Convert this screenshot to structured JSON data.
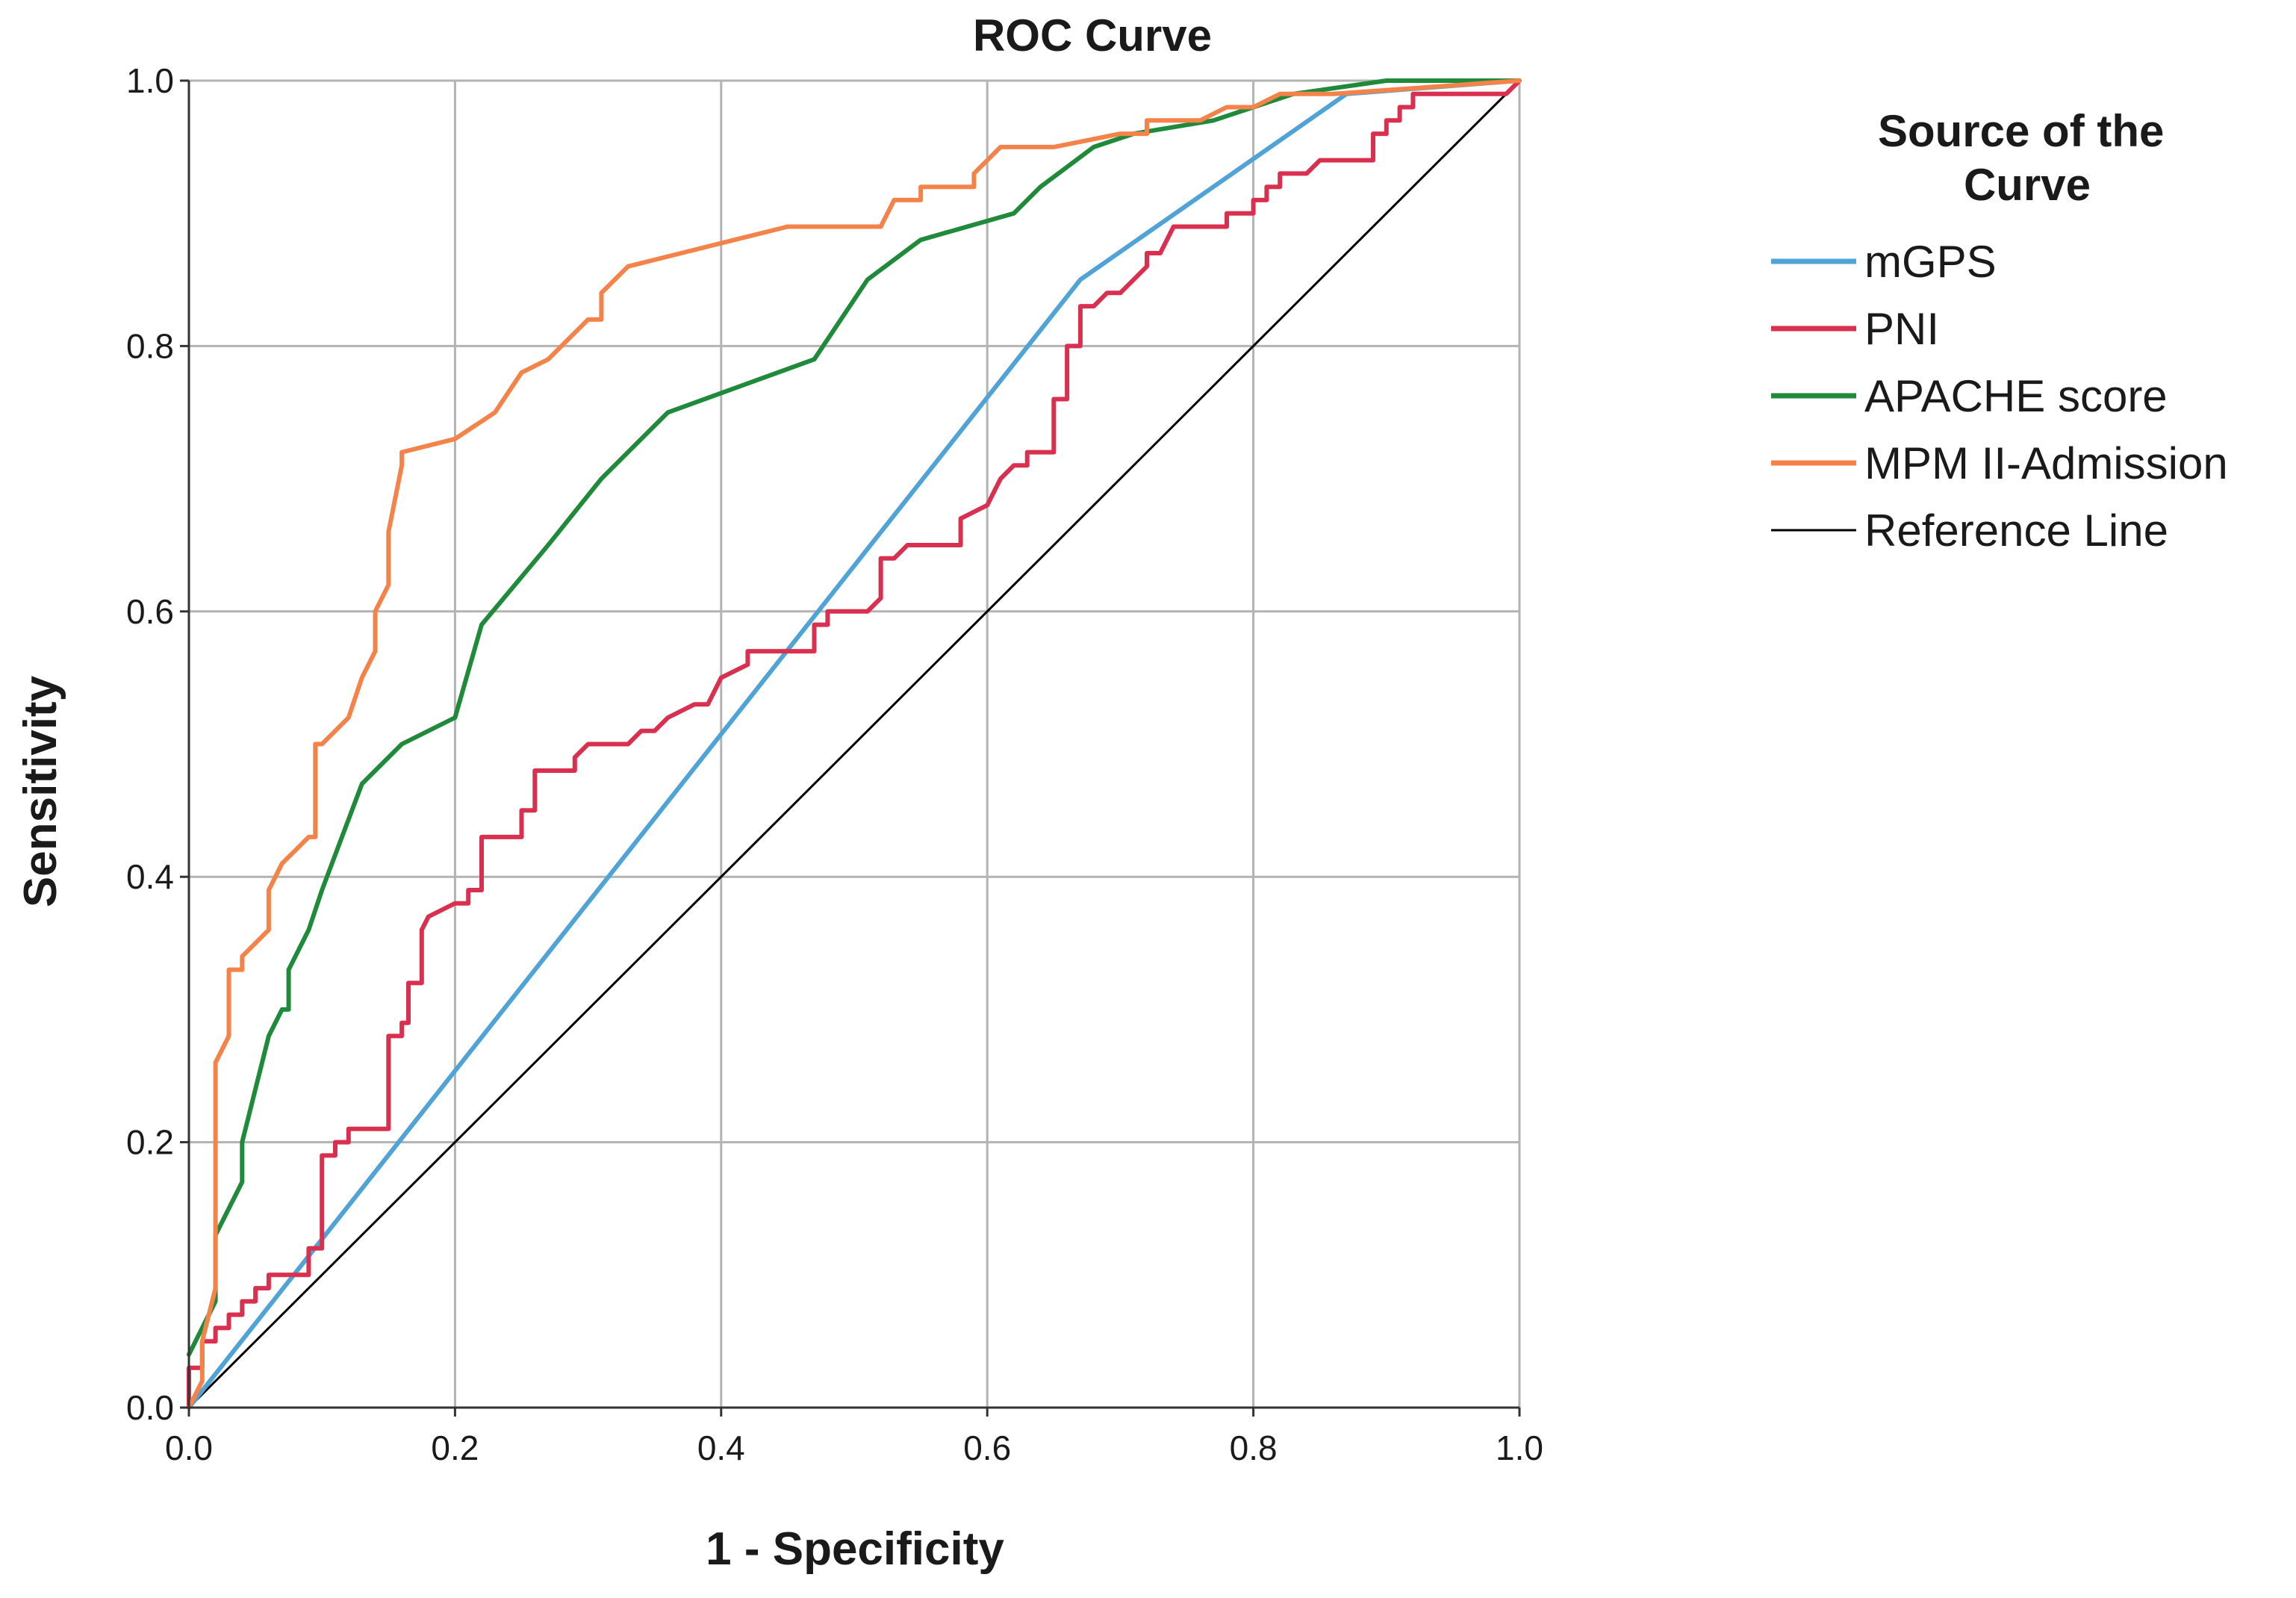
{
  "chart_data": {
    "type": "line",
    "title": "ROC Curve",
    "xlabel": "1 - Specificity",
    "ylabel": "Sensitivity",
    "xlim": [
      0,
      1
    ],
    "ylim": [
      0,
      1
    ],
    "x_ticks": [
      "0.0",
      "0.2",
      "0.4",
      "0.6",
      "0.8",
      "1.0"
    ],
    "y_ticks": [
      "0.0",
      "0.2",
      "0.4",
      "0.6",
      "0.8",
      "1.0"
    ],
    "grid": true,
    "legend": {
      "title": "Source of the Curve",
      "placement": "right"
    },
    "series": [
      {
        "name": "mGPS",
        "color": "#4fa3d6",
        "points": [
          [
            0,
            0
          ],
          [
            0.67,
            0.85
          ],
          [
            0.87,
            0.99
          ],
          [
            1.0,
            1.0
          ]
        ]
      },
      {
        "name": "PNI",
        "color": "#d9304f",
        "points": [
          [
            0,
            0
          ],
          [
            0,
            0.03
          ],
          [
            0.01,
            0.03
          ],
          [
            0.01,
            0.05
          ],
          [
            0.02,
            0.05
          ],
          [
            0.02,
            0.06
          ],
          [
            0.03,
            0.06
          ],
          [
            0.03,
            0.07
          ],
          [
            0.04,
            0.07
          ],
          [
            0.04,
            0.08
          ],
          [
            0.05,
            0.08
          ],
          [
            0.05,
            0.09
          ],
          [
            0.06,
            0.09
          ],
          [
            0.06,
            0.1
          ],
          [
            0.09,
            0.1
          ],
          [
            0.09,
            0.12
          ],
          [
            0.1,
            0.12
          ],
          [
            0.1,
            0.19
          ],
          [
            0.11,
            0.19
          ],
          [
            0.11,
            0.2
          ],
          [
            0.12,
            0.2
          ],
          [
            0.12,
            0.21
          ],
          [
            0.15,
            0.21
          ],
          [
            0.15,
            0.28
          ],
          [
            0.16,
            0.28
          ],
          [
            0.16,
            0.29
          ],
          [
            0.165,
            0.29
          ],
          [
            0.165,
            0.32
          ],
          [
            0.175,
            0.32
          ],
          [
            0.175,
            0.36
          ],
          [
            0.18,
            0.37
          ],
          [
            0.2,
            0.38
          ],
          [
            0.21,
            0.38
          ],
          [
            0.21,
            0.39
          ],
          [
            0.22,
            0.39
          ],
          [
            0.22,
            0.43
          ],
          [
            0.25,
            0.43
          ],
          [
            0.25,
            0.45
          ],
          [
            0.26,
            0.45
          ],
          [
            0.26,
            0.48
          ],
          [
            0.29,
            0.48
          ],
          [
            0.29,
            0.49
          ],
          [
            0.3,
            0.5
          ],
          [
            0.33,
            0.5
          ],
          [
            0.34,
            0.51
          ],
          [
            0.35,
            0.51
          ],
          [
            0.36,
            0.52
          ],
          [
            0.38,
            0.53
          ],
          [
            0.39,
            0.53
          ],
          [
            0.4,
            0.55
          ],
          [
            0.42,
            0.56
          ],
          [
            0.42,
            0.57
          ],
          [
            0.47,
            0.57
          ],
          [
            0.47,
            0.59
          ],
          [
            0.48,
            0.59
          ],
          [
            0.48,
            0.6
          ],
          [
            0.51,
            0.6
          ],
          [
            0.52,
            0.61
          ],
          [
            0.52,
            0.64
          ],
          [
            0.53,
            0.64
          ],
          [
            0.54,
            0.65
          ],
          [
            0.58,
            0.65
          ],
          [
            0.58,
            0.67
          ],
          [
            0.6,
            0.68
          ],
          [
            0.61,
            0.7
          ],
          [
            0.62,
            0.71
          ],
          [
            0.63,
            0.71
          ],
          [
            0.63,
            0.72
          ],
          [
            0.65,
            0.72
          ],
          [
            0.65,
            0.76
          ],
          [
            0.66,
            0.76
          ],
          [
            0.66,
            0.8
          ],
          [
            0.67,
            0.8
          ],
          [
            0.67,
            0.83
          ],
          [
            0.68,
            0.83
          ],
          [
            0.69,
            0.84
          ],
          [
            0.7,
            0.84
          ],
          [
            0.72,
            0.86
          ],
          [
            0.72,
            0.87
          ],
          [
            0.73,
            0.87
          ],
          [
            0.74,
            0.89
          ],
          [
            0.78,
            0.89
          ],
          [
            0.78,
            0.9
          ],
          [
            0.8,
            0.9
          ],
          [
            0.8,
            0.91
          ],
          [
            0.81,
            0.91
          ],
          [
            0.81,
            0.92
          ],
          [
            0.82,
            0.92
          ],
          [
            0.82,
            0.93
          ],
          [
            0.84,
            0.93
          ],
          [
            0.85,
            0.94
          ],
          [
            0.89,
            0.94
          ],
          [
            0.89,
            0.96
          ],
          [
            0.9,
            0.96
          ],
          [
            0.9,
            0.97
          ],
          [
            0.91,
            0.97
          ],
          [
            0.91,
            0.98
          ],
          [
            0.92,
            0.98
          ],
          [
            0.92,
            0.99
          ],
          [
            0.99,
            0.99
          ],
          [
            1.0,
            1.0
          ]
        ]
      },
      {
        "name": "APACHE score",
        "color": "#1f8a3a",
        "points": [
          [
            0,
            0.04
          ],
          [
            0.02,
            0.08
          ],
          [
            0.02,
            0.13
          ],
          [
            0.04,
            0.17
          ],
          [
            0.04,
            0.2
          ],
          [
            0.05,
            0.24
          ],
          [
            0.06,
            0.28
          ],
          [
            0.07,
            0.3
          ],
          [
            0.075,
            0.3
          ],
          [
            0.075,
            0.33
          ],
          [
            0.09,
            0.36
          ],
          [
            0.1,
            0.39
          ],
          [
            0.13,
            0.47
          ],
          [
            0.16,
            0.5
          ],
          [
            0.2,
            0.52
          ],
          [
            0.22,
            0.59
          ],
          [
            0.27,
            0.65
          ],
          [
            0.31,
            0.7
          ],
          [
            0.36,
            0.75
          ],
          [
            0.47,
            0.79
          ],
          [
            0.51,
            0.85
          ],
          [
            0.55,
            0.88
          ],
          [
            0.62,
            0.9
          ],
          [
            0.64,
            0.92
          ],
          [
            0.68,
            0.95
          ],
          [
            0.71,
            0.96
          ],
          [
            0.77,
            0.97
          ],
          [
            0.83,
            0.99
          ],
          [
            0.9,
            1.0
          ],
          [
            1.0,
            1.0
          ]
        ]
      },
      {
        "name": "MPM II-Admission",
        "color": "#f4834a",
        "points": [
          [
            0,
            0
          ],
          [
            0.01,
            0.02
          ],
          [
            0.01,
            0.05
          ],
          [
            0.02,
            0.09
          ],
          [
            0.02,
            0.26
          ],
          [
            0.03,
            0.28
          ],
          [
            0.03,
            0.33
          ],
          [
            0.04,
            0.33
          ],
          [
            0.04,
            0.34
          ],
          [
            0.06,
            0.36
          ],
          [
            0.06,
            0.39
          ],
          [
            0.07,
            0.41
          ],
          [
            0.08,
            0.42
          ],
          [
            0.09,
            0.43
          ],
          [
            0.095,
            0.43
          ],
          [
            0.095,
            0.5
          ],
          [
            0.1,
            0.5
          ],
          [
            0.11,
            0.51
          ],
          [
            0.12,
            0.52
          ],
          [
            0.13,
            0.55
          ],
          [
            0.14,
            0.57
          ],
          [
            0.14,
            0.6
          ],
          [
            0.15,
            0.62
          ],
          [
            0.15,
            0.66
          ],
          [
            0.16,
            0.71
          ],
          [
            0.16,
            0.72
          ],
          [
            0.2,
            0.73
          ],
          [
            0.23,
            0.75
          ],
          [
            0.25,
            0.78
          ],
          [
            0.27,
            0.79
          ],
          [
            0.29,
            0.81
          ],
          [
            0.3,
            0.82
          ],
          [
            0.31,
            0.82
          ],
          [
            0.31,
            0.84
          ],
          [
            0.33,
            0.86
          ],
          [
            0.37,
            0.87
          ],
          [
            0.41,
            0.88
          ],
          [
            0.45,
            0.89
          ],
          [
            0.52,
            0.89
          ],
          [
            0.53,
            0.91
          ],
          [
            0.55,
            0.91
          ],
          [
            0.55,
            0.92
          ],
          [
            0.59,
            0.92
          ],
          [
            0.59,
            0.93
          ],
          [
            0.61,
            0.95
          ],
          [
            0.65,
            0.95
          ],
          [
            0.7,
            0.96
          ],
          [
            0.72,
            0.96
          ],
          [
            0.72,
            0.97
          ],
          [
            0.76,
            0.97
          ],
          [
            0.78,
            0.98
          ],
          [
            0.8,
            0.98
          ],
          [
            0.82,
            0.99
          ],
          [
            0.86,
            0.99
          ],
          [
            1.0,
            1.0
          ]
        ]
      },
      {
        "name": "Reference Line",
        "color": "#000000",
        "points": [
          [
            0,
            0
          ],
          [
            1,
            1
          ]
        ]
      }
    ]
  }
}
